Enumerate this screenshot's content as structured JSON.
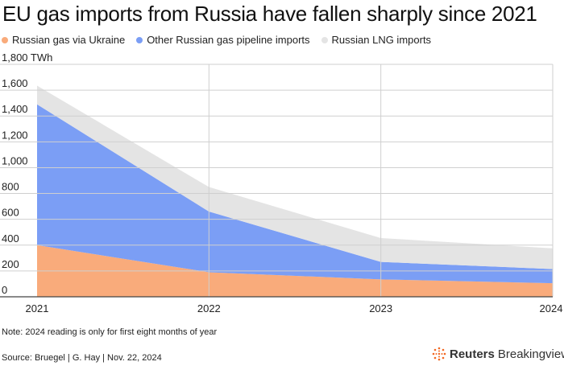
{
  "chart_data": {
    "type": "area",
    "stacked": true,
    "title": "EU gas imports from Russia have fallen sharply since 2021",
    "x": [
      2021,
      2022,
      2023,
      2024
    ],
    "xlabels": [
      "2021",
      "2022",
      "2023",
      "2024"
    ],
    "yunit": "TWh",
    "ylim": [
      0,
      1800
    ],
    "yticks": [
      0,
      200,
      400,
      600,
      800,
      1000,
      1200,
      1400,
      1600,
      1800
    ],
    "ytick_labels": [
      "0",
      "200",
      "400",
      "600",
      "800",
      "1,000",
      "1,200",
      "1,400",
      "1,600",
      "1,800 TWh"
    ],
    "grid": true,
    "legend_position": "top-left",
    "series": [
      {
        "name": "Russian gas via Ukraine",
        "color": "#f9ab7b",
        "values": [
          400,
          190,
          135,
          105
        ]
      },
      {
        "name": "Other Russian gas pipeline imports",
        "color": "#7b9ef5",
        "values": [
          1090,
          470,
          135,
          110
        ]
      },
      {
        "name": "Russian LNG imports",
        "color": "#e4e4e4",
        "values": [
          145,
          190,
          185,
          160
        ]
      }
    ]
  },
  "footer": {
    "note": "Note: 2024 reading is only for first eight months of year",
    "source": "Source: Bruegel | G. Hay | Nov. 22, 2024"
  },
  "brand": {
    "name_bold": "Reuters",
    "name_light": "Breakingviews",
    "accent_color": "#f26722"
  }
}
